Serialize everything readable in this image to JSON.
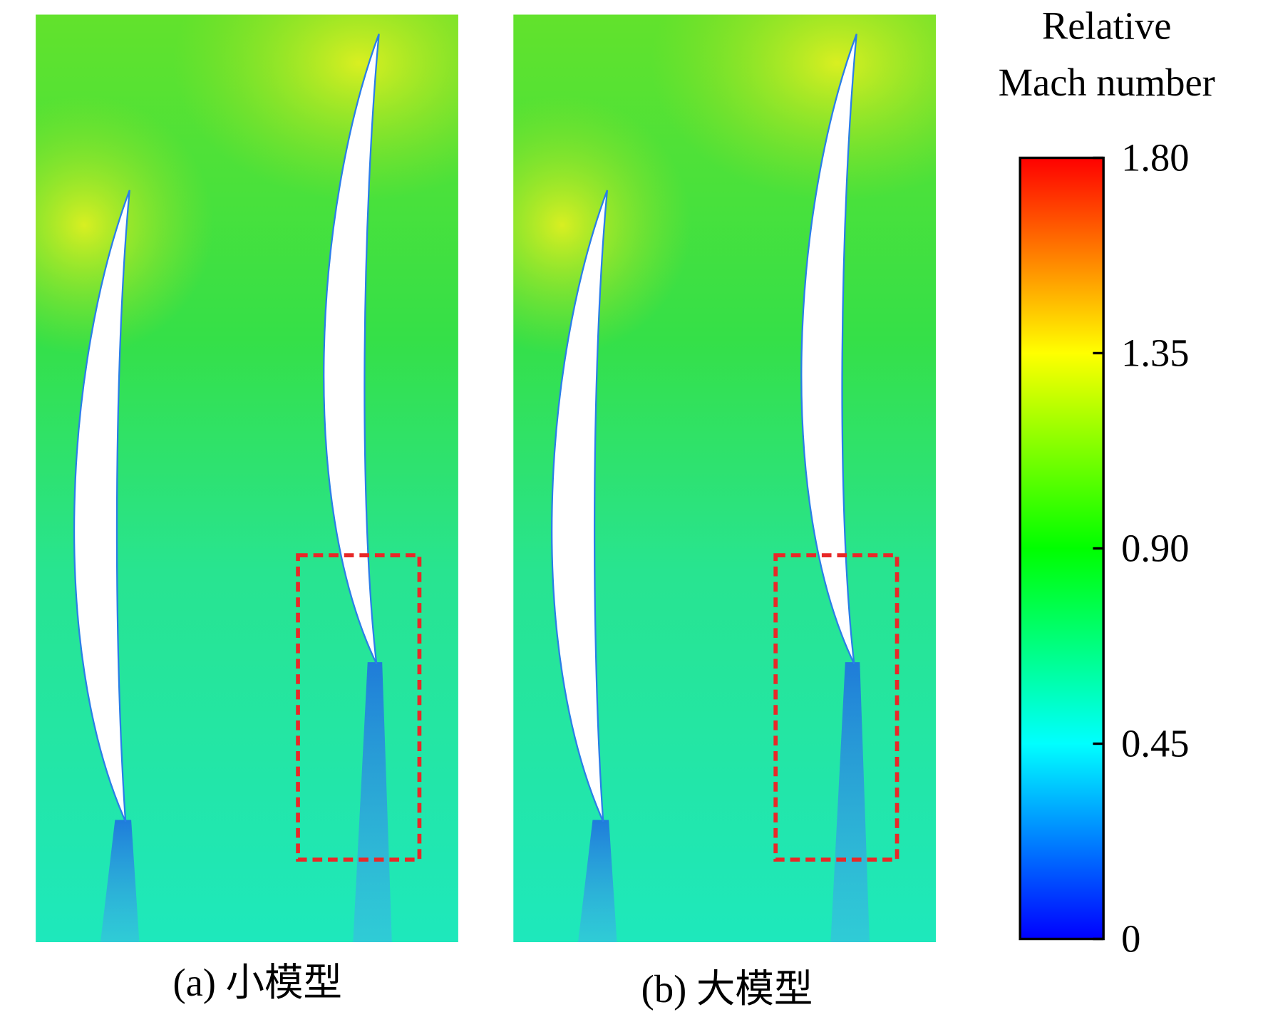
{
  "colorbar": {
    "title": [
      "Relative",
      "Mach number"
    ],
    "lim": [
      0,
      1.8
    ],
    "ticks": [
      {
        "value": 1.8,
        "label": "1.80"
      },
      {
        "value": 1.35,
        "label": "1.35"
      },
      {
        "value": 0.9,
        "label": "0.90"
      },
      {
        "value": 0.45,
        "label": "0.45"
      },
      0
    ]
  },
  "panels": [
    {
      "caption": "(a) 小模型"
    },
    {
      "caption": "(b) 大模型"
    }
  ]
}
